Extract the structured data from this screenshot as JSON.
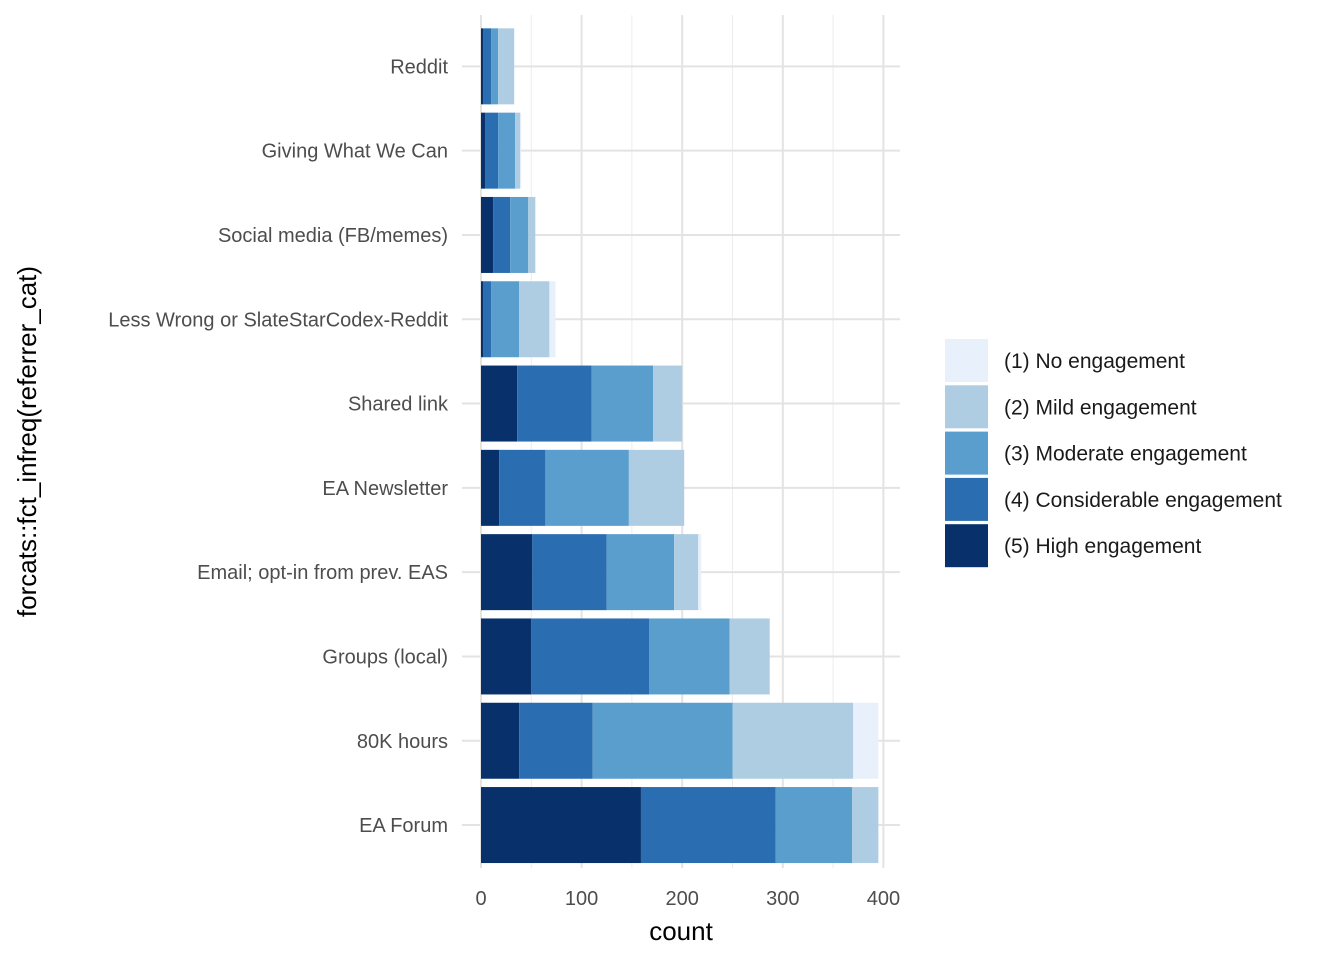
{
  "chart_data": {
    "type": "bar",
    "orientation": "horizontal",
    "stacked": true,
    "title": "",
    "xlabel": "count",
    "ylabel": "forcats::fct_infreq(referrer_cat)",
    "xlim": [
      0,
      415
    ],
    "x_ticks": [
      0,
      100,
      200,
      300,
      400
    ],
    "grid": true,
    "legend_position": "right",
    "categories": [
      "Reddit",
      "Giving What We Can",
      "Social media (FB/memes)",
      "Less Wrong or SlateStarCodex-Reddit",
      "Shared link",
      "EA Newsletter",
      "Email; opt-in from prev. EAS",
      "Groups (local)",
      "80K hours",
      "EA Forum"
    ],
    "series": [
      {
        "name": "(5) High engagement",
        "color": "#08306B",
        "values": [
          2,
          4,
          12,
          2,
          36,
          18,
          51,
          50,
          38,
          159
        ]
      },
      {
        "name": "(4) Considerable engagement",
        "color": "#2A6DB0",
        "values": [
          8,
          13,
          17,
          8,
          74,
          46,
          74,
          117,
          73,
          134
        ]
      },
      {
        "name": "(3) Moderate engagement",
        "color": "#5A9ECE",
        "values": [
          7,
          17,
          18,
          28,
          61,
          83,
          67,
          80,
          139,
          76
        ]
      },
      {
        "name": "(2) Mild engagement",
        "color": "#AECDE2",
        "values": [
          16,
          5,
          7,
          30,
          29,
          55,
          24,
          40,
          120,
          26
        ]
      },
      {
        "name": "(1) No engagement",
        "color": "#E8F0FB",
        "values": [
          0,
          1,
          0,
          6,
          0,
          0,
          3,
          0,
          25,
          0
        ]
      }
    ],
    "legend_order": [
      "(1) No engagement",
      "(2) Mild engagement",
      "(3) Moderate engagement",
      "(4) Considerable engagement",
      "(5) High engagement"
    ]
  }
}
